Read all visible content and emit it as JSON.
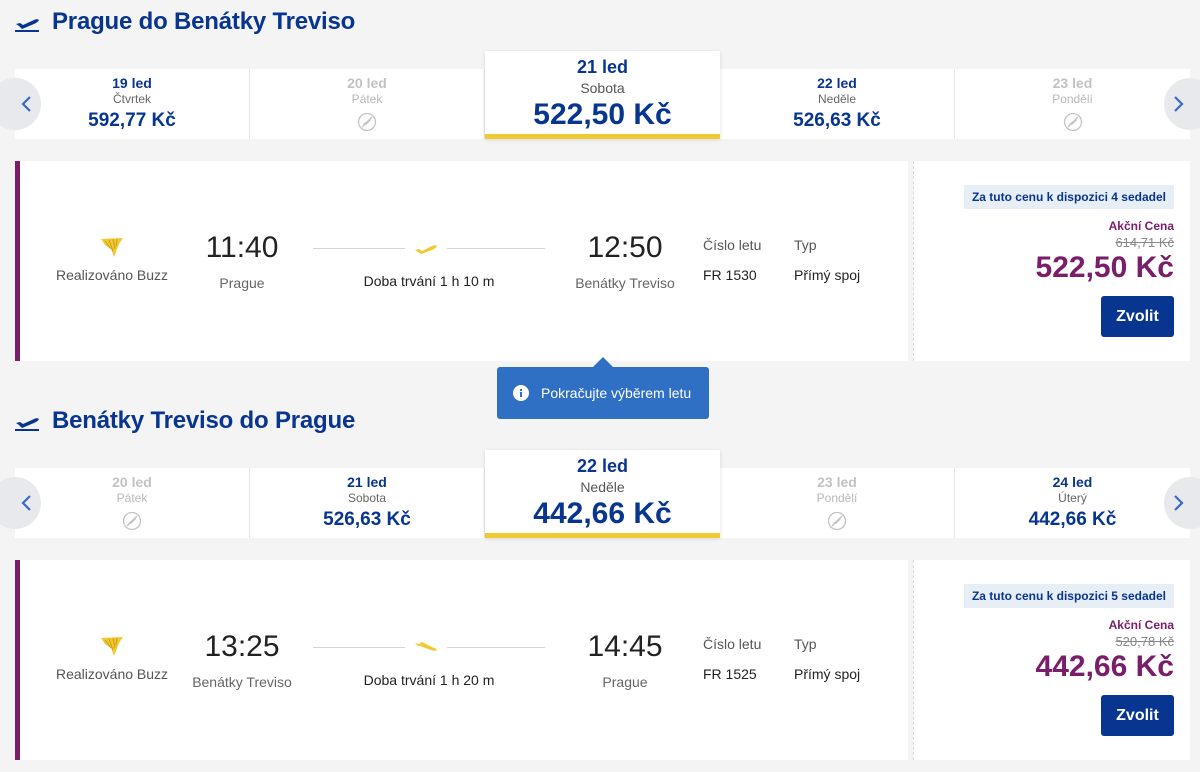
{
  "colors": {
    "brand_blue": "#073590",
    "accent_yellow": "#f1c933",
    "promo_purple": "#7a1d6a",
    "tooltip_blue": "#2f6fc4"
  },
  "outbound": {
    "title": "Prague do Benátky Treviso",
    "dates": [
      {
        "date": "19 led",
        "weekday": "Čtvrtek",
        "price": "592,77 Kč",
        "available": true
      },
      {
        "date": "20 led",
        "weekday": "Pátek",
        "price": "",
        "available": false
      },
      {
        "date": "21 led",
        "weekday": "Sobota",
        "price": "522,50 Kč",
        "available": true,
        "selected": true
      },
      {
        "date": "22 led",
        "weekday": "Neděle",
        "price": "526,63 Kč",
        "available": true
      },
      {
        "date": "23 led",
        "weekday": "Pondělí",
        "price": "",
        "available": false
      }
    ],
    "flight": {
      "carrier": "Realizováno Buzz",
      "dep_time": "11:40",
      "dep_city": "Prague",
      "arr_time": "12:50",
      "arr_city": "Benátky Treviso",
      "duration": "Doba trvání 1 h 10 m",
      "flight_no_label": "Číslo letu",
      "flight_no": "FR 1530",
      "type_label": "Typ",
      "type": "Přímý spoj"
    },
    "price": {
      "seats": "Za tuto cenu k dispozici 4 sedadel",
      "promo_label": "Akční Cena",
      "old": "614,71 Kč",
      "now": "522,50 Kč",
      "button": "Zvolit"
    }
  },
  "tooltip": {
    "text": "Pokračujte výběrem letu",
    "icon": "info-icon"
  },
  "inbound": {
    "title": "Benátky Treviso do Prague",
    "dates": [
      {
        "date": "20 led",
        "weekday": "Pátek",
        "price": "",
        "available": false
      },
      {
        "date": "21 led",
        "weekday": "Sobota",
        "price": "526,63 Kč",
        "available": true
      },
      {
        "date": "22 led",
        "weekday": "Neděle",
        "price": "442,66 Kč",
        "available": true,
        "selected": true
      },
      {
        "date": "23 led",
        "weekday": "Pondělí",
        "price": "",
        "available": false
      },
      {
        "date": "24 led",
        "weekday": "Úterý",
        "price": "442,66 Kč",
        "available": true
      }
    ],
    "flight": {
      "carrier": "Realizováno Buzz",
      "dep_time": "13:25",
      "dep_city": "Benátky Treviso",
      "arr_time": "14:45",
      "arr_city": "Prague",
      "duration": "Doba trvání 1 h 20 m",
      "flight_no_label": "Číslo letu",
      "flight_no": "FR 1525",
      "type_label": "Typ",
      "type": "Přímý spoj"
    },
    "price": {
      "seats": "Za tuto cenu k dispozici 5 sedadel",
      "promo_label": "Akční Cena",
      "old": "520,78 Kč",
      "now": "442,66 Kč",
      "button": "Zvolit"
    }
  }
}
